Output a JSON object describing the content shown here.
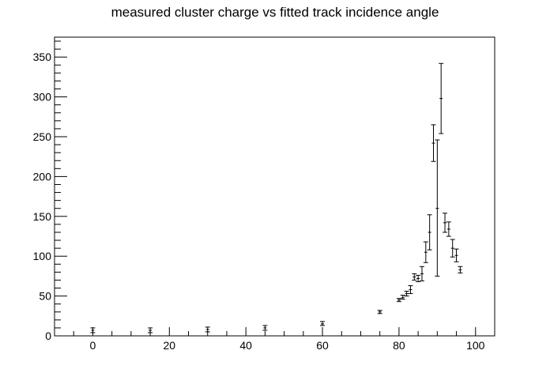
{
  "chart_data": {
    "type": "scatter",
    "title": "measured cluster charge vs fitted track incidence angle",
    "xlabel": "",
    "ylabel": "",
    "xlim": [
      -10,
      105
    ],
    "ylim": [
      0,
      375
    ],
    "xticks": [
      0,
      20,
      40,
      60,
      80,
      100
    ],
    "yticks": [
      0,
      50,
      100,
      150,
      200,
      250,
      300,
      350
    ],
    "grid": false,
    "legend": "none",
    "series": [
      {
        "error_bars": true,
        "points": [
          {
            "x": 0,
            "y": 7,
            "low": 4,
            "high": 10
          },
          {
            "x": 15,
            "y": 7,
            "low": 4,
            "high": 10
          },
          {
            "x": 30,
            "y": 8,
            "low": 5,
            "high": 11
          },
          {
            "x": 45,
            "y": 10,
            "low": 7,
            "high": 13
          },
          {
            "x": 60,
            "y": 15,
            "low": 13,
            "high": 18
          },
          {
            "x": 75,
            "y": 30,
            "low": 28,
            "high": 32
          },
          {
            "x": 80,
            "y": 45,
            "low": 43,
            "high": 47
          },
          {
            "x": 81,
            "y": 48,
            "low": 46,
            "high": 51
          },
          {
            "x": 82,
            "y": 53,
            "low": 50,
            "high": 56
          },
          {
            "x": 83,
            "y": 58,
            "low": 53,
            "high": 63
          },
          {
            "x": 84,
            "y": 74,
            "low": 70,
            "high": 78
          },
          {
            "x": 85,
            "y": 72,
            "low": 68,
            "high": 76
          },
          {
            "x": 86,
            "y": 78,
            "low": 69,
            "high": 87
          },
          {
            "x": 87,
            "y": 105,
            "low": 92,
            "high": 118
          },
          {
            "x": 88,
            "y": 130,
            "low": 108,
            "high": 152
          },
          {
            "x": 89,
            "y": 242,
            "low": 219,
            "high": 265
          },
          {
            "x": 90,
            "y": 160,
            "low": 75,
            "high": 246
          },
          {
            "x": 91,
            "y": 298,
            "low": 254,
            "high": 342
          },
          {
            "x": 92,
            "y": 142,
            "low": 130,
            "high": 154
          },
          {
            "x": 93,
            "y": 134,
            "low": 125,
            "high": 143
          },
          {
            "x": 94,
            "y": 110,
            "low": 99,
            "high": 121
          },
          {
            "x": 95,
            "y": 101,
            "low": 93,
            "high": 109
          },
          {
            "x": 96,
            "y": 83,
            "low": 79,
            "high": 87
          }
        ]
      }
    ],
    "colors": {
      "axis": "#000000",
      "marker": "#000000"
    }
  }
}
